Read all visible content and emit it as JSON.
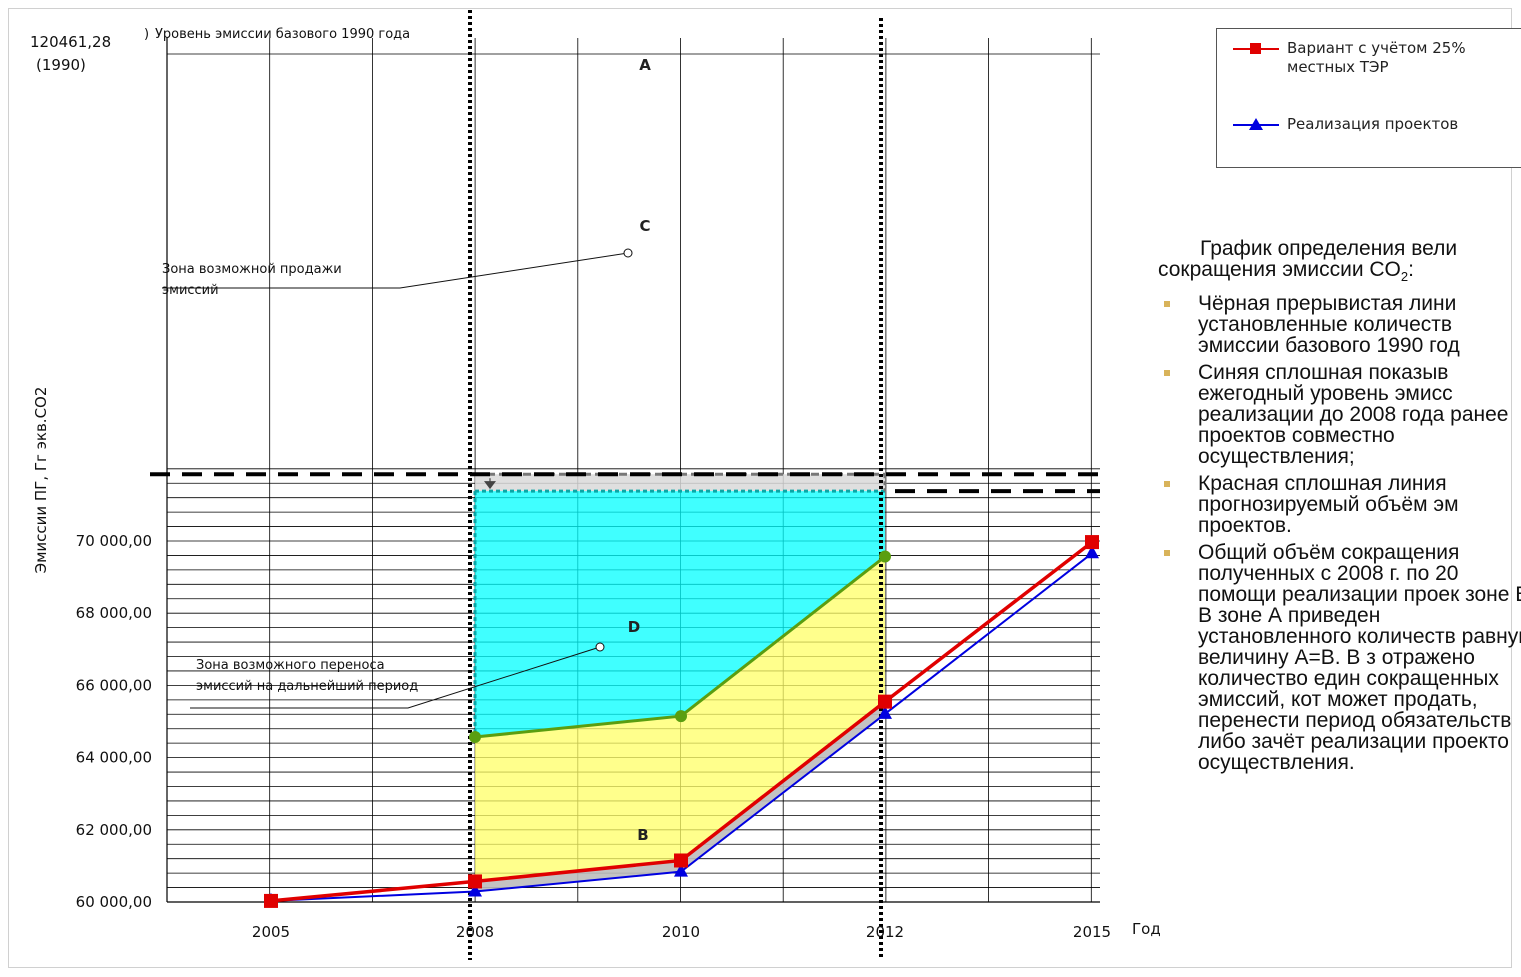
{
  "chart_data": {
    "type": "line",
    "xlabel": "Год",
    "ylabel": "Эмиссии ПГ, Гг экв.CO2",
    "x": [
      2005,
      2008,
      2010,
      2012,
      2015
    ],
    "x_tick_labels": [
      "2005",
      "2008",
      "2010",
      "2012",
      "2015"
    ],
    "y_tick_labels": [
      "60 000,00",
      "62 000,00",
      "64 000,00",
      "66 000,00",
      "68 000,00",
      "70 000,00"
    ],
    "ylim": [
      60000,
      72200
    ],
    "grid": true,
    "series": [
      {
        "name": "Вариант с учётом 25% местных ТЭР",
        "color": "#e00000",
        "marker": "square",
        "values": [
          60030,
          60570,
          61150,
          65550,
          69970
        ]
      },
      {
        "name": "Реализация проектов",
        "color": "#0000e0",
        "marker": "triangle",
        "values": [
          60030,
          60290,
          60840,
          65210,
          69660
        ]
      },
      {
        "name": "",
        "color": "#5a9e10",
        "marker": "circle",
        "x": [
          2008,
          2010,
          2012
        ],
        "values": [
          64570,
          65150,
          69570
        ]
      }
    ],
    "baseline": {
      "label": "Уровень эмиссии базового 1990 года",
      "value_text": "120461,28",
      "year_text": "(1990)",
      "y_plot": 71850
    },
    "cap_level": 71380,
    "zones": [
      {
        "label": "A",
        "color": "#d9d9d9"
      },
      {
        "label": "B",
        "color": "#bdbdbd"
      },
      {
        "label": "C",
        "color": "#00ffff"
      },
      {
        "label": "D",
        "color": "#ffff66"
      }
    ],
    "annotations": [
      {
        "text_lines": [
          "Зона возможной продажи",
          "эмиссий"
        ]
      },
      {
        "text_lines": [
          "Зона возможного переноса",
          "эмиссий на дальнейший период"
        ]
      }
    ]
  },
  "legend": {
    "items": [
      {
        "label_lines": [
          "Вариант с учётом 25%",
          "местных ТЭР"
        ]
      },
      {
        "label_lines": [
          "Реализация проектов"
        ]
      }
    ]
  },
  "description": {
    "title_line1": "График определения вели",
    "title_line2_prefix": "сокращения эмиссии CO",
    "title_line2_sub": "2",
    "title_line2_suffix": ":",
    "bullets": [
      "Чёрная прерывистая лини установленные количеств эмиссии базового 1990 год",
      "Синяя  сплошная показыв ежегодный уровень эмисс реализации до 2008 года ранее проектов совместно осуществления;",
      "Красная сплошная линия прогнозируемый объём эм проектов.",
      "Общий объём сокращения полученных с 2008 г. по 20 помощи реализации проек зоне В. В зоне А приведен установленного количеств равную величину А=В. В з отражено количество един сокращенных эмиссий, кот может продать, перенести период обязательств либо зачёт реализации проекто осуществления."
    ]
  }
}
